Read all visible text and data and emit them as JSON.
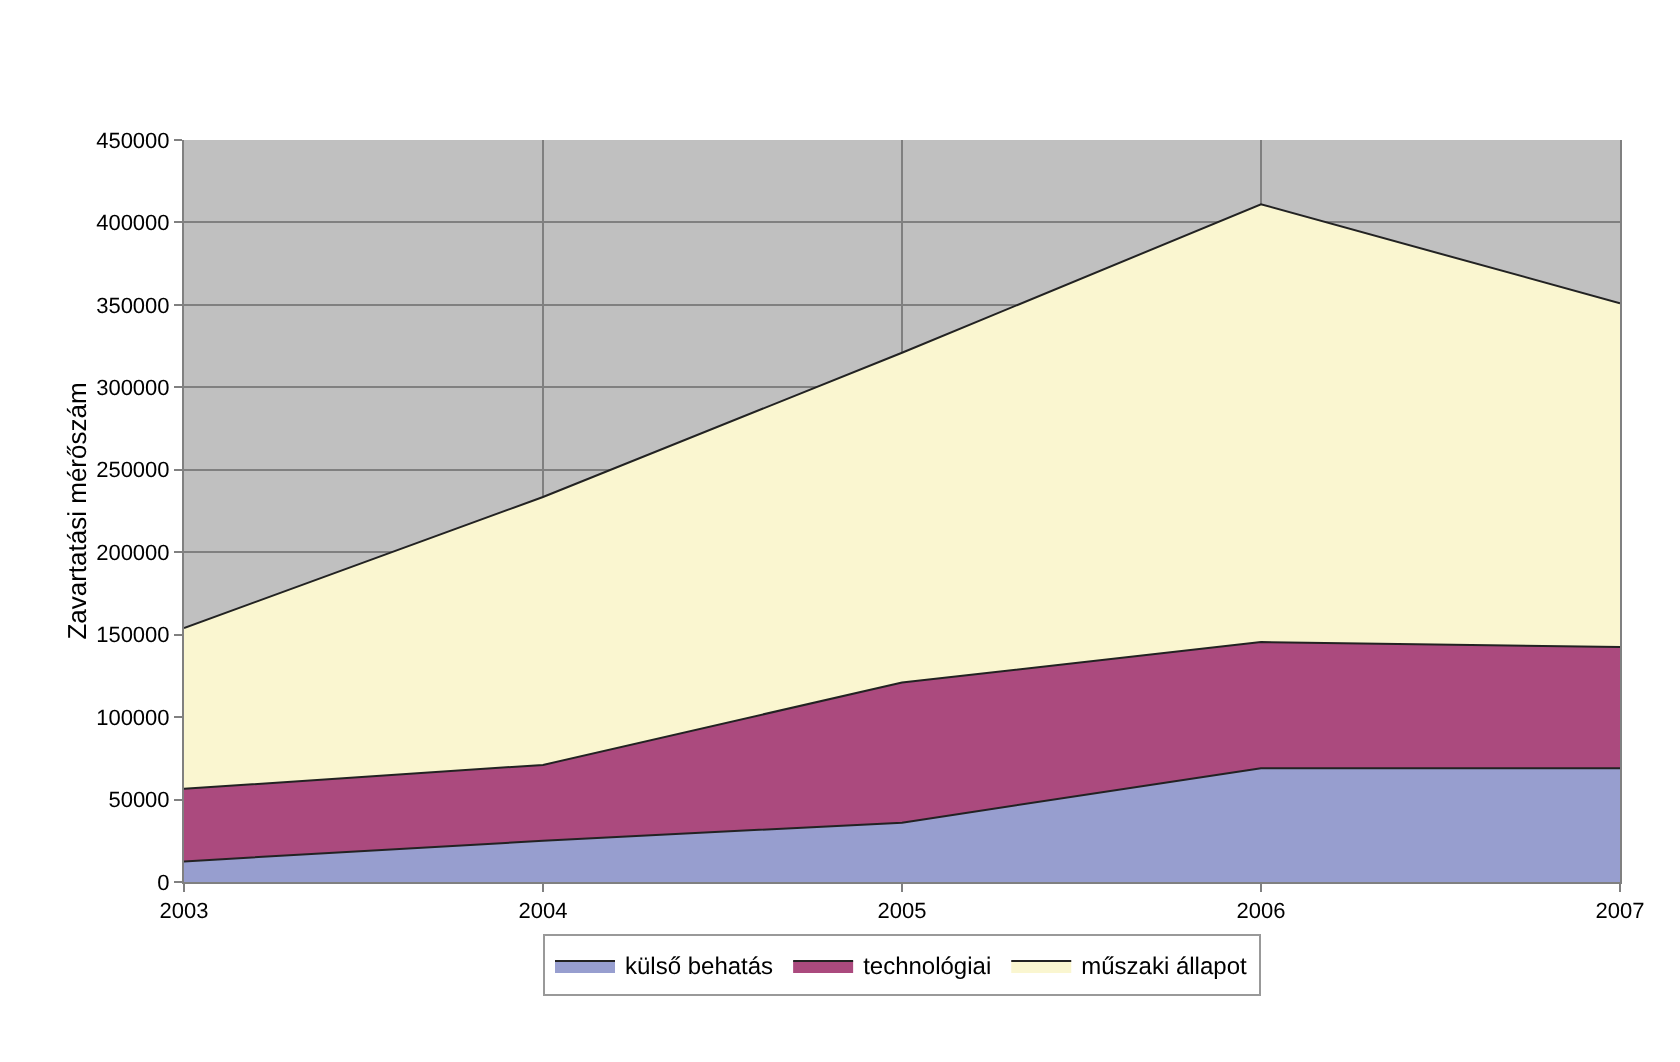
{
  "chart_data": {
    "type": "area",
    "stacked": true,
    "ylabel": "Zavartatási mérőszám",
    "x": [
      2003,
      2004,
      2005,
      2006,
      2007
    ],
    "series": [
      {
        "name": "külső behatás",
        "color": "#979ecf",
        "values": [
          12500,
          25000,
          36000,
          69000,
          69000
        ]
      },
      {
        "name": "technológiai",
        "color": "#ab4a7e",
        "values": [
          44000,
          46000,
          85000,
          76500,
          73500
        ]
      },
      {
        "name": "műszaki állapot",
        "color": "#faf6d0",
        "values": [
          97500,
          162500,
          200000,
          265500,
          208500
        ]
      }
    ],
    "xlim": [
      2003,
      2007
    ],
    "xticks": [
      2003,
      2004,
      2005,
      2006,
      2007
    ],
    "ylim": [
      0,
      450000
    ],
    "yticks": [
      0,
      50000,
      100000,
      150000,
      200000,
      250000,
      300000,
      350000,
      400000,
      450000
    ],
    "grid": true,
    "legend": "bottom"
  }
}
